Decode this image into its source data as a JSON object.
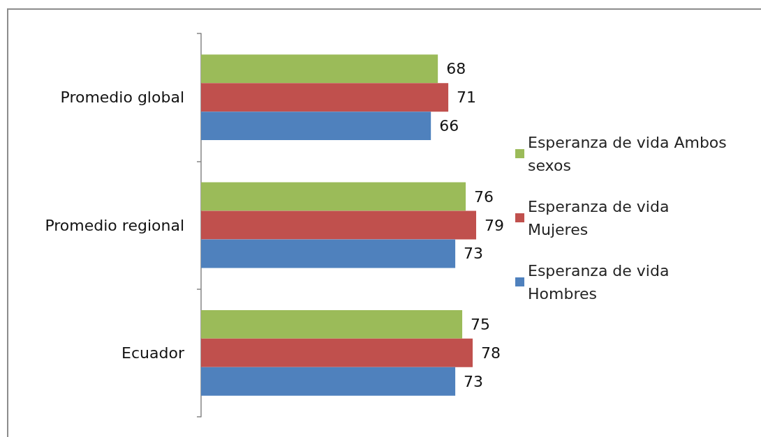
{
  "chart_data": {
    "type": "bar",
    "orientation": "horizontal",
    "categories": [
      "Promedio global",
      "Promedio regional",
      "Ecuador"
    ],
    "series": [
      {
        "name": "Esperanza de vida Ambos sexos",
        "color": "#9bbb59",
        "values": [
          68,
          76,
          75
        ]
      },
      {
        "name": "Esperanza de vida Mujeres",
        "color": "#c0504d",
        "values": [
          71,
          79,
          78
        ]
      },
      {
        "name": "Esperanza de vida Hombres",
        "color": "#4f81bd",
        "values": [
          66,
          73,
          73
        ]
      }
    ],
    "tick_labels": "y",
    "data_labels": true,
    "legend": "right",
    "grid": false
  }
}
